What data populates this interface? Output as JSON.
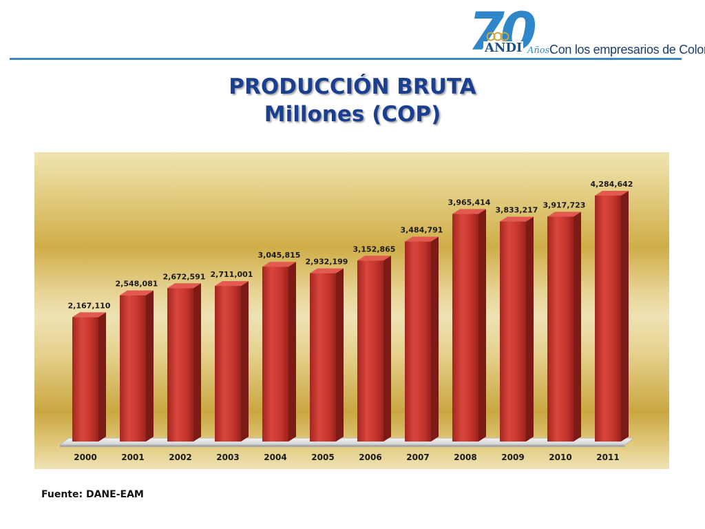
{
  "header": {
    "logo_number": "70",
    "logo_brand": "ANDI",
    "logo_years": "Años",
    "tagline": "Con los empresarios de Colombia"
  },
  "title": {
    "line1": "PRODUCCIÓN BRUTA",
    "line2": "Millones (COP)"
  },
  "source": "Fuente: DANE-EAM",
  "colors": {
    "accent_blue": "#3d86c4",
    "title_blue": "#1b3f8f",
    "bar_red": "#cc3a32"
  },
  "chart_data": {
    "type": "bar",
    "title": "PRODUCCIÓN BRUTA",
    "subtitle": "Millones (COP)",
    "categories": [
      "2000",
      "2001",
      "2002",
      "2003",
      "2004",
      "2005",
      "2006",
      "2007",
      "2008",
      "2009",
      "2010",
      "2011"
    ],
    "values": [
      2167110,
      2548081,
      2672591,
      2711001,
      3045815,
      2932199,
      3152865,
      3484791,
      3965414,
      3833217,
      3917723,
      4284642
    ],
    "value_labels": [
      "2,167,110",
      "2,548,081",
      "2,672,591",
      "2,711,001",
      "3,045,815",
      "2,932,199",
      "3,152,865",
      "3,484,791",
      "3,965,414",
      "3,833,217",
      "3,917,723",
      "4,284,642"
    ],
    "xlabel": "",
    "ylabel": "",
    "ylim": [
      0,
      4800000
    ],
    "grid": false,
    "legend": "none",
    "style": "3d"
  }
}
